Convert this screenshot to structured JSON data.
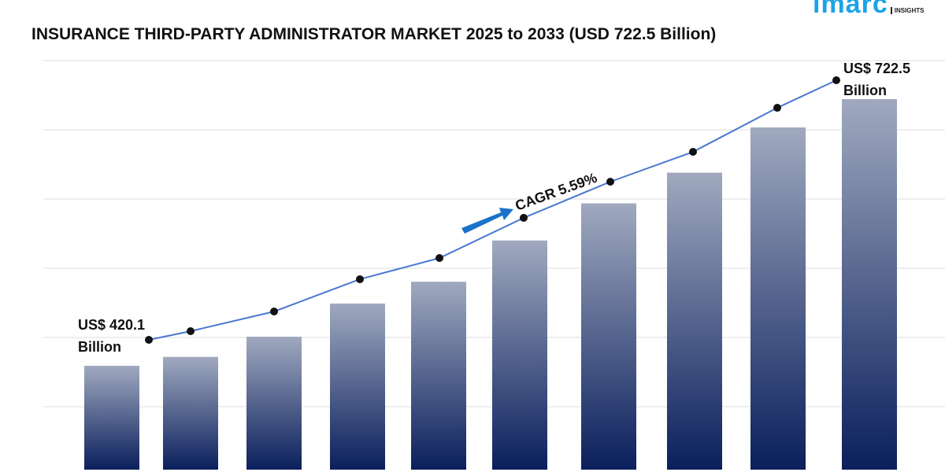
{
  "title": "INSURANCE THIRD-PARTY ADMINISTRATOR MARKET 2025 to 2033 (USD 722.5 Billion)",
  "logo": {
    "text": "imarc",
    "sub": "INSIGHTS",
    "color": "#1aa3e8"
  },
  "chart_data": {
    "type": "bar",
    "title": "INSURANCE THIRD-PARTY ADMINISTRATOR MARKET 2025 to 2033 (USD 722.5 Billion)",
    "values": [
      420.1,
      430.2,
      453.1,
      490.7,
      515.4,
      562.2,
      604.3,
      639.1,
      690.4,
      722.5
    ],
    "overlay": "line",
    "grid": true,
    "annotations": {
      "start_line1": "US$ 420.1",
      "start_line2": "Billion",
      "end_line1": "US$ 722.5",
      "end_line2": "Billion",
      "cagr": "CAGR 5.59%"
    },
    "colors": {
      "bar_top": "#a0a9bf",
      "bar_bottom": "#0a1f5c",
      "line": "#4a78d0",
      "arrow": "#1a73c8"
    }
  }
}
